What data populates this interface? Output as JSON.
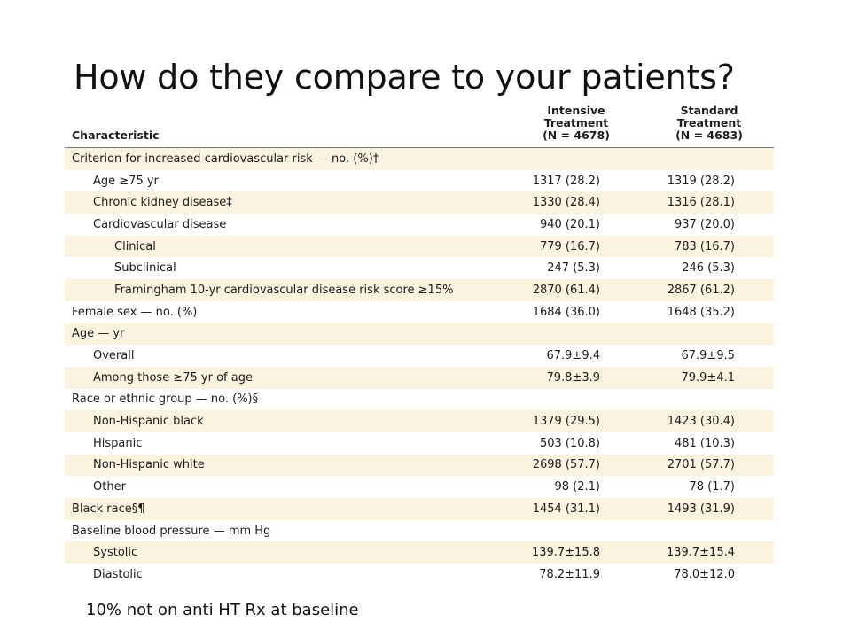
{
  "slide": {
    "title": "How do they compare to your patients?",
    "footnote": "10% not on anti HT Rx at baseline"
  },
  "table": {
    "header": {
      "characteristic": "Characteristic",
      "intensive_line1": "Intensive Treatment",
      "intensive_line2": "(N = 4678)",
      "standard_line1": "Standard Treatment",
      "standard_line2": "(N = 4683)"
    },
    "rows": [
      {
        "label": "Criterion for increased cardiovascular risk — no. (%)†",
        "level": 0,
        "intensive": "",
        "standard": ""
      },
      {
        "label": "Age ≥75 yr",
        "level": 1,
        "intensive": "1317 (28.2)",
        "standard": "1319 (28.2)"
      },
      {
        "label": "Chronic kidney disease‡",
        "level": 1,
        "intensive": "1330 (28.4)",
        "standard": "1316 (28.1)"
      },
      {
        "label": "Cardiovascular disease",
        "level": 1,
        "intensive": "940 (20.1)",
        "standard": "937 (20.0)"
      },
      {
        "label": "Clinical",
        "level": 2,
        "intensive": "779 (16.7)",
        "standard": "783 (16.7)"
      },
      {
        "label": "Subclinical",
        "level": 2,
        "intensive": "247 (5.3)",
        "standard": "246 (5.3)"
      },
      {
        "label": "Framingham 10-yr cardiovascular disease risk score ≥15%",
        "level": 2,
        "intensive": "2870 (61.4)",
        "standard": "2867 (61.2)"
      },
      {
        "label": "Female sex — no. (%)",
        "level": 0,
        "intensive": "1684 (36.0)",
        "standard": "1648 (35.2)"
      },
      {
        "label": "Age — yr",
        "level": 0,
        "intensive": "",
        "standard": ""
      },
      {
        "label": "Overall",
        "level": 1,
        "intensive": "67.9±9.4",
        "standard": "67.9±9.5"
      },
      {
        "label": "Among those ≥75 yr of age",
        "level": 1,
        "intensive": "79.8±3.9",
        "standard": "79.9±4.1"
      },
      {
        "label": "Race or ethnic group — no. (%)§",
        "level": 0,
        "intensive": "",
        "standard": ""
      },
      {
        "label": "Non-Hispanic black",
        "level": 1,
        "intensive": "1379 (29.5)",
        "standard": "1423 (30.4)"
      },
      {
        "label": "Hispanic",
        "level": 1,
        "intensive": "503 (10.8)",
        "standard": "481 (10.3)"
      },
      {
        "label": "Non-Hispanic white",
        "level": 1,
        "intensive": "2698 (57.7)",
        "standard": "2701 (57.7)"
      },
      {
        "label": "Other",
        "level": 1,
        "intensive": "98 (2.1)",
        "standard": "78 (1.7)"
      },
      {
        "label": "Black race§¶",
        "level": 0,
        "intensive": "1454 (31.1)",
        "standard": "1493 (31.9)"
      },
      {
        "label": "Baseline blood pressure — mm Hg",
        "level": 0,
        "intensive": "",
        "standard": ""
      },
      {
        "label": "Systolic",
        "level": 1,
        "intensive": "139.7±15.8",
        "standard": "139.7±15.4"
      },
      {
        "label": "Diastolic",
        "level": 1,
        "intensive": "78.2±11.9",
        "standard": "78.0±12.0"
      }
    ]
  }
}
